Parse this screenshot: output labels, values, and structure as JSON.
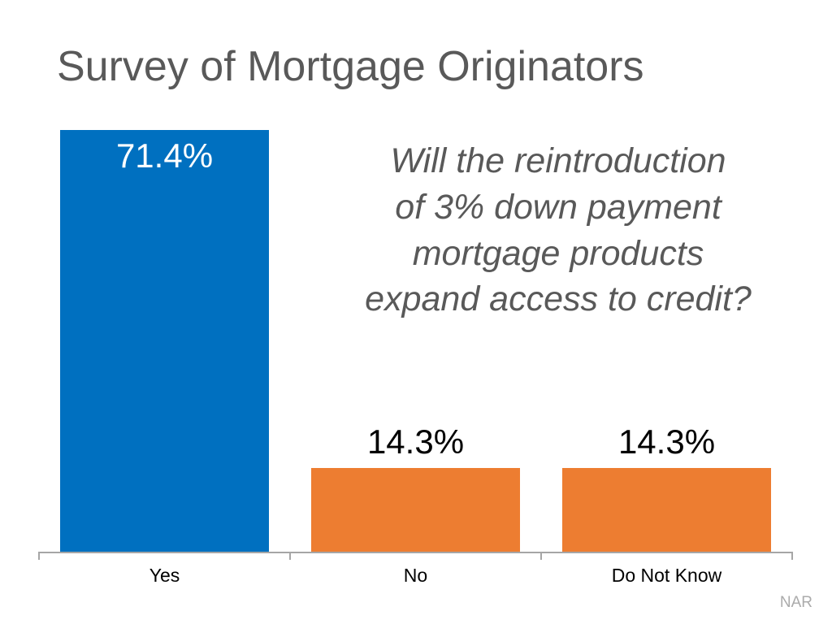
{
  "slide": {
    "title": "Survey of Mortgage Originators",
    "question_lines": [
      "Will the reintroduction",
      "of 3% down payment",
      "mortgage products",
      "expand access to credit?"
    ],
    "attribution": "NAR"
  },
  "colors": {
    "title_text": "#595959",
    "question_text": "#595959",
    "bar_blue": "#0070C0",
    "bar_orange": "#ED7D31",
    "value_label_inside": "#FFFFFF",
    "value_label_outside": "#000000",
    "axis_line": "#A6A6A6",
    "attribution_text": "#ABABAB"
  },
  "chart_data": {
    "type": "bar",
    "title": "Survey of Mortgage Originators",
    "categories": [
      "Yes",
      "No",
      "Do Not Know"
    ],
    "values": [
      71.4,
      14.3,
      14.3
    ],
    "value_labels": [
      "71.4%",
      "14.3%",
      "14.3%"
    ],
    "bar_colors": [
      "#0070C0",
      "#ED7D31",
      "#ED7D31"
    ],
    "label_inside": [
      true,
      false,
      false
    ],
    "xlabel": "",
    "ylabel": "",
    "ylim": [
      0,
      75
    ],
    "grid": false,
    "legend": false,
    "annotation": "Will the reintroduction of 3% down payment mortgage products expand access to credit?"
  }
}
